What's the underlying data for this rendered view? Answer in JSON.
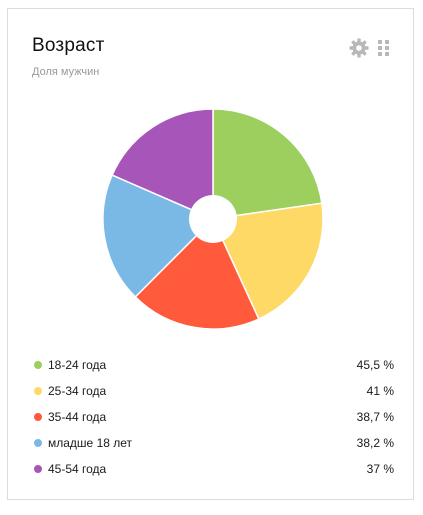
{
  "widget": {
    "title": "Возраст",
    "subtitle": "Доля мужчин",
    "settings_icon": "gear-icon",
    "drag_icon": "drag-handle-icon"
  },
  "chart_data": {
    "type": "pie",
    "donut": true,
    "legend_position": "bottom",
    "categories": [
      "18-24 года",
      "25-34 года",
      "35-44 года",
      "младше 18 лет",
      "45-54 года"
    ],
    "values": [
      45.5,
      41,
      38.7,
      38.2,
      37
    ],
    "value_labels": [
      "45,5 %",
      "41 %",
      "38,7 %",
      "38,2 %",
      "37 %"
    ],
    "colors": [
      "#9ccf5e",
      "#ffd966",
      "#ff5a3c",
      "#7ab8e6",
      "#a755b8"
    ]
  }
}
